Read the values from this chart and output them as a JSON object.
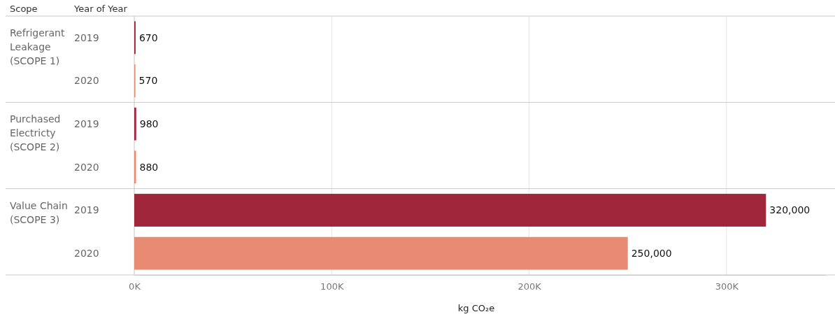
{
  "chart_data": {
    "type": "bar",
    "orientation": "horizontal",
    "categories": [
      "2019",
      "2020",
      "2019",
      "2020",
      "2019",
      "2020"
    ],
    "values": [
      670,
      570,
      980,
      880,
      320000,
      250000
    ],
    "colors": [
      "#a0263c",
      "#e98a72",
      "#a0263c",
      "#e98a72",
      "#a0263c",
      "#e98a72"
    ],
    "value_labels": [
      "670",
      "570",
      "980",
      "880",
      "320,000",
      "250,000"
    ],
    "xlim": [
      0,
      350000
    ],
    "xticks": [
      {
        "value": 0,
        "label": "0K"
      },
      {
        "value": 100000,
        "label": "100K"
      },
      {
        "value": 200000,
        "label": "200K"
      },
      {
        "value": 300000,
        "label": "300K"
      }
    ],
    "xlabel": "kg CO₂e",
    "grid": "x",
    "annotations": [
      "Scope",
      "Year of Year",
      "Refrigerant Leakage (SCOPE 1)",
      "Purchased Electricty (SCOPE 2)",
      "Value Chain (SCOPE 3)"
    ]
  }
}
